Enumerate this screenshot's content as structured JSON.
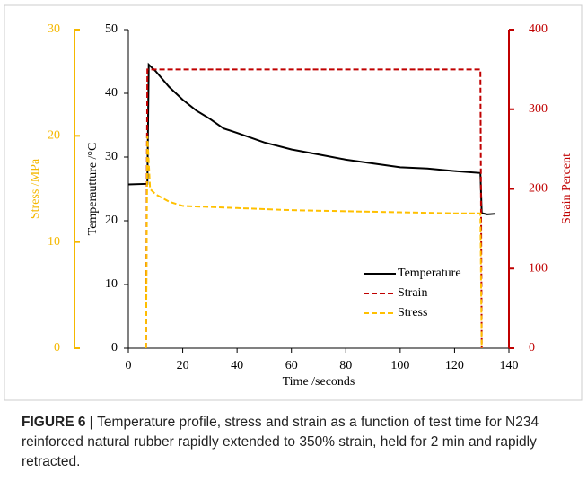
{
  "chart_data": {
    "type": "line",
    "xlabel": "Time /seconds",
    "ylabel": "Temperautture /°C",
    "y2label": "Strain Percent",
    "y3label": "Stress /MPa",
    "xlim": [
      0,
      140
    ],
    "xticks": [
      0,
      20,
      40,
      60,
      80,
      100,
      120,
      140
    ],
    "ylim": [
      0,
      50
    ],
    "yticks": [
      0,
      10,
      20,
      30,
      40,
      50
    ],
    "y2lim": [
      0,
      400
    ],
    "y2ticks": [
      0,
      100,
      200,
      300,
      400
    ],
    "y3lim": [
      0,
      30
    ],
    "y3ticks": [
      0,
      10,
      20,
      30
    ],
    "y3color": "#f5b800",
    "y2color": "#c00000",
    "legend": "lower right",
    "series": [
      {
        "name": "Temperature",
        "color": "#000000",
        "dash": false,
        "x": [
          0,
          7,
          7.5,
          10,
          15,
          20,
          25,
          30,
          35,
          40,
          50,
          60,
          70,
          80,
          90,
          100,
          110,
          120,
          129.5,
          130,
          132,
          135
        ],
        "values": [
          25.7,
          25.8,
          44.5,
          43.5,
          41,
          39,
          37.3,
          36,
          34.5,
          33.8,
          32.3,
          31.2,
          30.4,
          29.6,
          29,
          28.4,
          28.2,
          27.8,
          27.5,
          21.2,
          21,
          21.1
        ]
      },
      {
        "name": "Strain",
        "color": "#c00000",
        "dash": true,
        "axis": "y2",
        "x": [
          6.5,
          7,
          129.5,
          130
        ],
        "values": [
          0,
          350,
          350,
          0
        ]
      },
      {
        "name": "Stress",
        "color": "#ffc000",
        "dash": true,
        "axis": "y3",
        "x": [
          6.5,
          7,
          8,
          10,
          15,
          20,
          40,
          60,
          80,
          100,
          120,
          129.5,
          130
        ],
        "values": [
          0,
          20,
          15,
          14.5,
          13.8,
          13.4,
          13.2,
          13.0,
          12.9,
          12.8,
          12.7,
          12.7,
          0
        ]
      }
    ]
  },
  "caption": {
    "label": "FIGURE 6 |",
    "text": "Temperature profile, stress and strain as a function of test time for N234 reinforced natural rubber rapidly extended to 350% strain, held for 2 min and rapidly retracted."
  }
}
